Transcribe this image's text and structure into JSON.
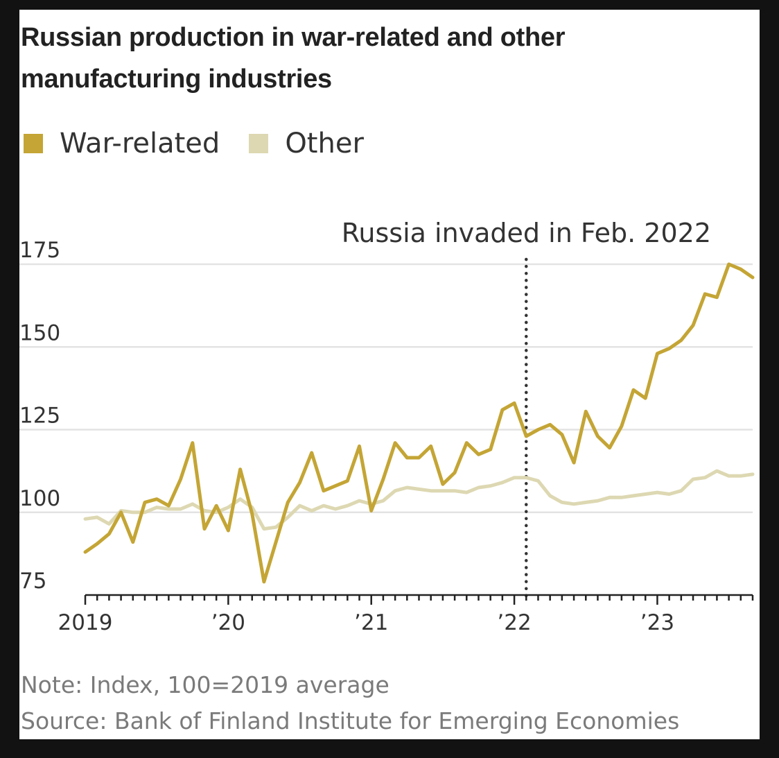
{
  "title": "Russian production in war-related and other manufacturing industries",
  "legend": {
    "war_label": "War-related",
    "other_label": "Other"
  },
  "annotation": "Russia invaded in Feb. 2022",
  "note": "Note: Index, 100=2019 average",
  "source": "Source: Bank of Finland Institute for Emerging Economies",
  "colors": {
    "war": "#c4a535",
    "other": "#ddd8b2",
    "grid": "#e3e3e3",
    "axis": "#222222",
    "text": "#333333"
  },
  "chart_data": {
    "type": "line",
    "title": "Russian production in war-related and other manufacturing industries",
    "xlabel": "",
    "ylabel": "",
    "ylim": [
      75,
      175
    ],
    "yticks": [
      75,
      100,
      125,
      150,
      175
    ],
    "ytick_labels": [
      "75",
      "100",
      "125",
      "150",
      "175"
    ],
    "x_start": "2019-01",
    "x_end": "2023-09",
    "x_tick_labels": [
      {
        "date": "2019-01",
        "label": "2019"
      },
      {
        "date": "2020-01",
        "label": "’20"
      },
      {
        "date": "2021-01",
        "label": "’21"
      },
      {
        "date": "2022-01",
        "label": "’22"
      },
      {
        "date": "2023-01",
        "label": "’23"
      }
    ],
    "annotation": {
      "date": "2022-02",
      "label": "Russia invaded in Feb. 2022"
    },
    "grid": true,
    "legend_position": "top-left",
    "x": [
      "2019-01",
      "2019-02",
      "2019-03",
      "2019-04",
      "2019-05",
      "2019-06",
      "2019-07",
      "2019-08",
      "2019-09",
      "2019-10",
      "2019-11",
      "2019-12",
      "2020-01",
      "2020-02",
      "2020-03",
      "2020-04",
      "2020-05",
      "2020-06",
      "2020-07",
      "2020-08",
      "2020-09",
      "2020-10",
      "2020-11",
      "2020-12",
      "2021-01",
      "2021-02",
      "2021-03",
      "2021-04",
      "2021-05",
      "2021-06",
      "2021-07",
      "2021-08",
      "2021-09",
      "2021-10",
      "2021-11",
      "2021-12",
      "2022-01",
      "2022-02",
      "2022-03",
      "2022-04",
      "2022-05",
      "2022-06",
      "2022-07",
      "2022-08",
      "2022-09",
      "2022-10",
      "2022-11",
      "2022-12",
      "2023-01",
      "2023-02",
      "2023-03",
      "2023-04",
      "2023-05",
      "2023-06",
      "2023-07",
      "2023-08",
      "2023-09"
    ],
    "series": [
      {
        "name": "War-related",
        "color": "#c4a535",
        "values": [
          88,
          90.5,
          93.5,
          100,
          91,
          103,
          104,
          102,
          110,
          121,
          95,
          102,
          94.5,
          113,
          99.5,
          79,
          91,
          103,
          109,
          118,
          106.5,
          108,
          109.5,
          120,
          100.5,
          110,
          121,
          116.5,
          116.5,
          120,
          108.5,
          112,
          121,
          117.5,
          119,
          131,
          133,
          123,
          125,
          126.5,
          123.5,
          115,
          130.5,
          123,
          119.5,
          126,
          137,
          134.5,
          148,
          149.5,
          152,
          156.5,
          166,
          165,
          175,
          173.5,
          171
        ]
      },
      {
        "name": "Other",
        "color": "#ddd8b2",
        "values": [
          98,
          98.5,
          96.5,
          100.5,
          100,
          100,
          101.5,
          101,
          101,
          102.5,
          100.5,
          100,
          101.5,
          104,
          101.5,
          95,
          95.5,
          98.5,
          102,
          100.5,
          102,
          101,
          102,
          103.5,
          102.5,
          103.5,
          106.5,
          107.5,
          107,
          106.5,
          106.5,
          106.5,
          106,
          107.5,
          108,
          109,
          110.5,
          110.5,
          109.5,
          105,
          103,
          102.5,
          103,
          103.5,
          104.5,
          104.5,
          105,
          105.5,
          106,
          105.5,
          106.5,
          110,
          110.5,
          112.5,
          111,
          111,
          111.5
        ]
      }
    ]
  }
}
